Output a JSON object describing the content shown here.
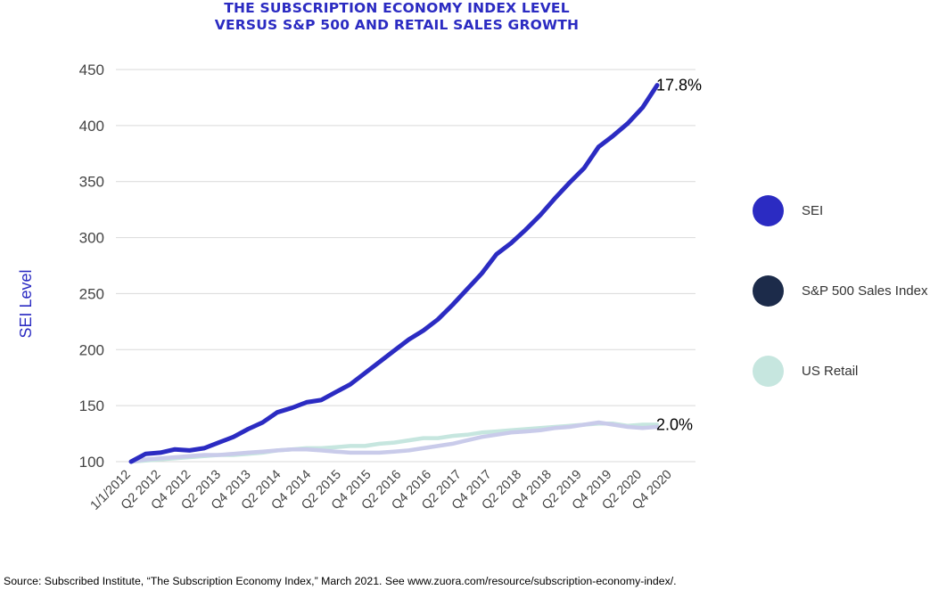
{
  "title": {
    "line1": "THE SUBSCRIPTION ECONOMY INDEX LEVEL",
    "line2": "VERSUS S&P 500 AND RETAIL SALES GROWTH"
  },
  "source": "Source: Subscribed Institute, “The Subscription Economy Index,” March 2021. See www.zuora.com/resource/subscription-economy-index/.",
  "legend": [
    {
      "name": "SEI",
      "color": "#2b2bc2"
    },
    {
      "name": "S&P 500 Sales Index",
      "color": "#1c2b4a"
    },
    {
      "name": "US Retail",
      "color": "#c6e6df"
    }
  ],
  "chart_data": {
    "type": "line",
    "ylabel": "SEI Level",
    "ylim": [
      100,
      450
    ],
    "yticks": [
      100,
      150,
      200,
      250,
      300,
      350,
      400,
      450
    ],
    "x_tick_labels": [
      "1/1/2012",
      "Q2 2012",
      "Q4 2012",
      "Q2 2013",
      "Q4 2013",
      "Q2 2014",
      "Q4 2014",
      "Q2 2015",
      "Q4 2015",
      "Q2 2016",
      "Q4 2016",
      "Q2 2017",
      "Q4 2017",
      "Q2 2018",
      "Q4 2018",
      "Q2 2019",
      "Q4 2019",
      "Q2 2020",
      "Q4 2020"
    ],
    "grid": true,
    "legend_position": "right",
    "series": [
      {
        "name": "SEI",
        "color": "#2b2bc2",
        "values": [
          100,
          107,
          108,
          111,
          110,
          112,
          117,
          122,
          129,
          135,
          144,
          148,
          153,
          155,
          162,
          169,
          179,
          189,
          199,
          209,
          217,
          227,
          240,
          254,
          268,
          285,
          295,
          307,
          320,
          335,
          349,
          362,
          381,
          391,
          402,
          416,
          436
        ],
        "end_label": "17.8%"
      },
      {
        "name": "S&P 500 Sales Index",
        "color": "#c9cbea",
        "values": [
          100,
          102,
          103,
          104,
          105,
          106,
          106,
          107,
          108,
          109,
          110,
          111,
          111,
          110,
          109,
          108,
          108,
          108,
          109,
          110,
          112,
          114,
          116,
          119,
          122,
          124,
          126,
          127,
          128,
          130,
          131,
          133,
          135,
          133,
          131,
          130,
          131
        ]
      },
      {
        "name": "US Retail",
        "color": "#c6e6df",
        "values": [
          100,
          101,
          102,
          103,
          104,
          105,
          106,
          106,
          107,
          108,
          110,
          111,
          112,
          112,
          113,
          114,
          114,
          116,
          117,
          119,
          121,
          121,
          123,
          124,
          126,
          127,
          128,
          129,
          130,
          131,
          132,
          133,
          134,
          134,
          132,
          133,
          133
        ],
        "end_label": "2.0%"
      }
    ]
  }
}
